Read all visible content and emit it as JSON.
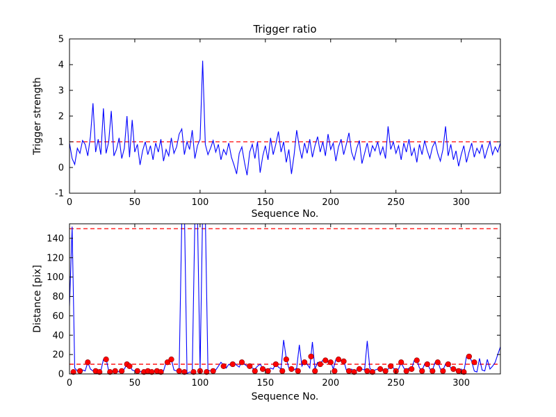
{
  "figure": {
    "background": "#ffffff"
  },
  "chart_data": [
    {
      "type": "line",
      "title": "Trigger ratio",
      "xlabel": "Sequence No.",
      "ylabel": "Trigger strength",
      "xlim": [
        0,
        330
      ],
      "ylim": [
        -1,
        5
      ],
      "xticks": [
        0,
        50,
        100,
        150,
        200,
        250,
        300
      ],
      "yticks": [
        -1,
        0,
        1,
        2,
        3,
        4,
        5
      ],
      "line_color": "#0000ff",
      "threshold_color": "#ff0000",
      "thresholds": [
        1
      ],
      "x_start": 0,
      "x_step": 2,
      "y": [
        0.95,
        0.35,
        0.12,
        0.75,
        0.55,
        1.05,
        0.9,
        0.45,
        1.2,
        2.5,
        0.6,
        1.1,
        0.5,
        2.3,
        0.55,
        1.0,
        2.2,
        0.45,
        0.7,
        1.15,
        0.35,
        0.75,
        2.0,
        0.4,
        1.85,
        0.6,
        0.9,
        0.1,
        0.65,
        1.0,
        0.5,
        0.85,
        0.3,
        0.95,
        0.6,
        1.1,
        0.25,
        0.7,
        0.45,
        1.15,
        0.55,
        0.8,
        1.3,
        1.5,
        0.5,
        1.0,
        0.7,
        1.45,
        0.35,
        0.85,
        1.1,
        4.15,
        0.9,
        0.5,
        0.75,
        1.05,
        0.6,
        0.9,
        0.3,
        0.7,
        0.5,
        0.95,
        0.4,
        0.1,
        -0.25,
        0.55,
        0.8,
        0.2,
        -0.3,
        0.6,
        0.9,
        0.35,
        1.0,
        -0.2,
        0.45,
        0.85,
        0.3,
        1.15,
        0.5,
        0.9,
        1.4,
        0.6,
        1.0,
        0.2,
        0.7,
        -0.25,
        0.5,
        1.45,
        0.8,
        0.35,
        0.95,
        0.55,
        1.1,
        0.4,
        0.85,
        1.2,
        0.6,
        1.0,
        0.45,
        1.3,
        0.7,
        0.95,
        0.25,
        0.8,
        1.1,
        0.5,
        0.9,
        1.35,
        0.6,
        0.3,
        0.75,
        1.05,
        0.15,
        0.55,
        0.95,
        0.4,
        0.85,
        0.65,
        1.0,
        0.5,
        0.8,
        0.35,
        1.6,
        0.7,
        1.0,
        0.55,
        0.85,
        0.3,
        0.95,
        0.6,
        1.1,
        0.45,
        0.75,
        0.2,
        0.9,
        0.5,
        1.05,
        0.65,
        0.35,
        0.8,
        1.0,
        0.55,
        0.25,
        0.7,
        1.6,
        0.45,
        0.9,
        0.3,
        0.65,
        0.05,
        0.5,
        0.85,
        0.2,
        0.6,
        0.95,
        0.4,
        0.75,
        0.55,
        0.9,
        0.35,
        0.7,
        1.0,
        0.5,
        0.8,
        0.6,
        0.95
      ]
    },
    {
      "type": "line+scatter",
      "title": "",
      "xlabel": "Sequence No.",
      "ylabel": "Distance [pix]",
      "xlim": [
        0,
        330
      ],
      "ylim": [
        0,
        155
      ],
      "xticks": [
        0,
        50,
        100,
        150,
        200,
        250,
        300
      ],
      "yticks": [
        0,
        20,
        40,
        60,
        80,
        100,
        120,
        140
      ],
      "line_color": "#0000ff",
      "threshold_color": "#ff0000",
      "thresholds": [
        150,
        10
      ],
      "x_start": 0,
      "x_step": 2,
      "y": [
        70,
        152,
        6,
        3,
        2,
        4,
        3,
        12,
        5,
        3,
        4,
        2,
        3,
        15,
        16,
        3,
        2,
        4,
        3,
        2,
        3,
        5,
        10,
        9,
        4,
        3,
        4,
        2,
        3,
        2,
        4,
        3,
        2,
        4,
        3,
        2,
        3,
        12,
        13,
        15,
        4,
        3,
        5,
        160,
        170,
        0.5,
        2,
        1,
        160,
        165,
        3,
        170,
        165,
        4,
        3,
        5,
        4,
        8,
        12,
        9,
        6,
        10,
        8,
        12,
        9,
        7,
        13,
        10,
        8,
        9,
        6,
        5,
        8,
        10,
        6,
        5,
        4,
        6,
        5,
        11,
        7,
        5,
        35,
        16,
        6,
        5,
        4,
        6,
        30,
        8,
        13,
        10,
        6,
        33,
        5,
        12,
        11,
        14,
        13,
        12,
        13,
        5,
        15,
        16,
        13,
        14,
        4,
        3,
        5,
        3,
        4,
        6,
        5,
        4,
        34,
        6,
        3,
        4,
        5,
        6,
        4,
        3,
        5,
        8,
        6,
        4,
        5,
        12,
        6,
        4,
        6,
        5,
        14,
        15,
        6,
        4,
        10,
        11,
        5,
        4,
        12,
        13,
        5,
        4,
        10,
        11,
        6,
        5,
        4,
        3,
        5,
        2,
        18,
        19,
        13,
        3,
        2,
        16,
        4,
        3,
        15,
        5,
        8,
        12,
        20,
        28
      ],
      "scatter": {
        "color": "#ff0000",
        "x": [
          3,
          8,
          14,
          20,
          23,
          28,
          31,
          35,
          40,
          44,
          46,
          52,
          57,
          60,
          63,
          67,
          70,
          75,
          78,
          84,
          88,
          95,
          100,
          105,
          110,
          118,
          125,
          132,
          138,
          142,
          148,
          152,
          158,
          163,
          166,
          170,
          175,
          180,
          185,
          188,
          192,
          196,
          200,
          203,
          206,
          210,
          214,
          218,
          222,
          228,
          232,
          238,
          242,
          246,
          250,
          254,
          258,
          262,
          266,
          270,
          274,
          278,
          282,
          286,
          290,
          294,
          298,
          302,
          306,
          310
        ],
        "y": [
          2,
          3,
          12,
          3,
          2,
          15,
          2,
          3,
          3,
          10,
          8,
          3,
          2,
          3,
          2,
          3,
          2,
          12,
          15,
          3,
          2,
          2,
          3,
          2,
          3,
          8,
          10,
          12,
          8,
          3,
          5,
          3,
          10,
          3,
          15,
          5,
          3,
          12,
          18,
          3,
          10,
          14,
          12,
          3,
          15,
          13,
          3,
          2,
          5,
          3,
          2,
          5,
          3,
          8,
          3,
          12,
          3,
          5,
          14,
          3,
          10,
          3,
          12,
          3,
          10,
          5,
          3,
          2,
          18,
          12
        ]
      }
    }
  ]
}
